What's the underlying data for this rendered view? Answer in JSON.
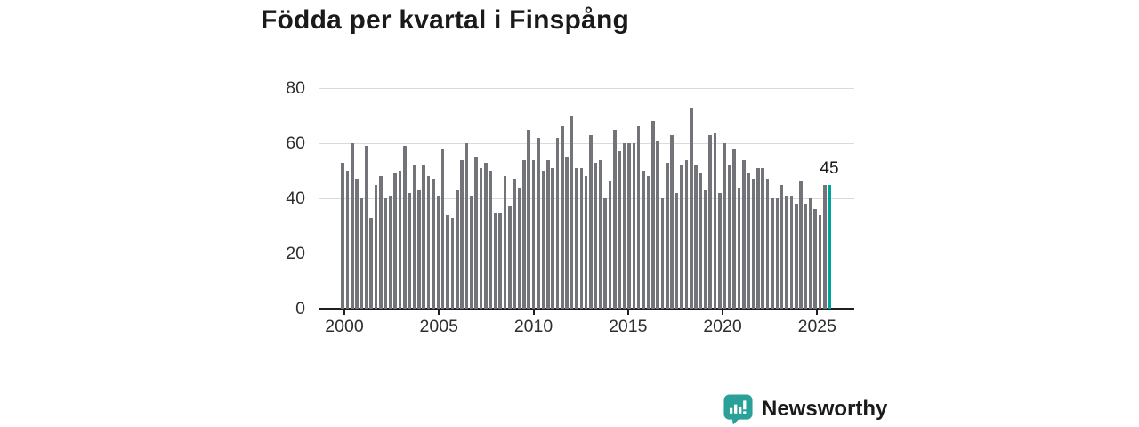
{
  "title": "Födda per kvartal i Finspång",
  "chart_data": {
    "type": "bar",
    "title": "Födda per kvartal i Finspång",
    "xlabel": "",
    "ylabel": "",
    "ylim": [
      0,
      80
    ],
    "grid": "horizontal",
    "y_ticks": [
      0,
      20,
      40,
      60,
      80
    ],
    "x_tick_labels": [
      "2000",
      "2005",
      "2010",
      "2015",
      "2020",
      "2025"
    ],
    "categories": [
      "2000-K1",
      "2000-K2",
      "2000-K3",
      "2000-K4",
      "2001-K1",
      "2001-K2",
      "2001-K3",
      "2001-K4",
      "2002-K1",
      "2002-K2",
      "2002-K3",
      "2002-K4",
      "2003-K1",
      "2003-K2",
      "2003-K3",
      "2003-K4",
      "2004-K1",
      "2004-K2",
      "2004-K3",
      "2004-K4",
      "2005-K1",
      "2005-K2",
      "2005-K3",
      "2005-K4",
      "2006-K1",
      "2006-K2",
      "2006-K3",
      "2006-K4",
      "2007-K1",
      "2007-K2",
      "2007-K3",
      "2007-K4",
      "2008-K1",
      "2008-K2",
      "2008-K3",
      "2008-K4",
      "2009-K1",
      "2009-K2",
      "2009-K3",
      "2009-K4",
      "2010-K1",
      "2010-K2",
      "2010-K3",
      "2010-K4",
      "2011-K1",
      "2011-K2",
      "2011-K3",
      "2011-K4",
      "2012-K1",
      "2012-K2",
      "2012-K3",
      "2012-K4",
      "2013-K1",
      "2013-K2",
      "2013-K3",
      "2013-K4",
      "2014-K1",
      "2014-K2",
      "2014-K3",
      "2014-K4",
      "2015-K1",
      "2015-K2",
      "2015-K3",
      "2015-K4",
      "2016-K1",
      "2016-K2",
      "2016-K3",
      "2016-K4",
      "2017-K1",
      "2017-K2",
      "2017-K3",
      "2017-K4",
      "2018-K1",
      "2018-K2",
      "2018-K3",
      "2018-K4",
      "2019-K1",
      "2019-K2",
      "2019-K3",
      "2019-K4",
      "2020-K1",
      "2020-K2",
      "2020-K3",
      "2020-K4",
      "2021-K1",
      "2021-K2",
      "2021-K3",
      "2021-K4",
      "2022-K1",
      "2022-K2",
      "2022-K3",
      "2022-K4",
      "2023-K1",
      "2023-K2",
      "2023-K3",
      "2023-K4",
      "2024-K1",
      "2024-K2",
      "2024-K3",
      "2024-K4",
      "2025-K1",
      "2025-K2",
      "2025-K3"
    ],
    "values": [
      53,
      50,
      60,
      47,
      40,
      59,
      33,
      45,
      48,
      40,
      41,
      49,
      50,
      59,
      42,
      52,
      43,
      52,
      48,
      47,
      41,
      58,
      34,
      33,
      43,
      54,
      60,
      41,
      55,
      51,
      53,
      50,
      35,
      35,
      48,
      37,
      47,
      44,
      54,
      65,
      54,
      62,
      50,
      54,
      51,
      62,
      66,
      55,
      70,
      51,
      51,
      48,
      63,
      53,
      54,
      40,
      46,
      65,
      57,
      60,
      60,
      60,
      66,
      50,
      48,
      68,
      61,
      40,
      53,
      63,
      42,
      52,
      54,
      73,
      52,
      49,
      43,
      63,
      64,
      42,
      60,
      52,
      58,
      44,
      54,
      49,
      47,
      51,
      51,
      47,
      40,
      40,
      45,
      41,
      41,
      38,
      46,
      38,
      40,
      36,
      34,
      45,
      45
    ],
    "highlight": {
      "index": 102,
      "value": 45,
      "label": "45"
    },
    "colors": {
      "bar": "#73737a",
      "highlight": "#00a39b",
      "grid": "#dadadc",
      "axis": "#1f1f1f",
      "tick_text": "#2e2e2e",
      "title_text": "#1a1a1a"
    },
    "legend": "none"
  },
  "branding": {
    "logo_text": "Newsworthy",
    "logo_color": "#2aa198"
  }
}
